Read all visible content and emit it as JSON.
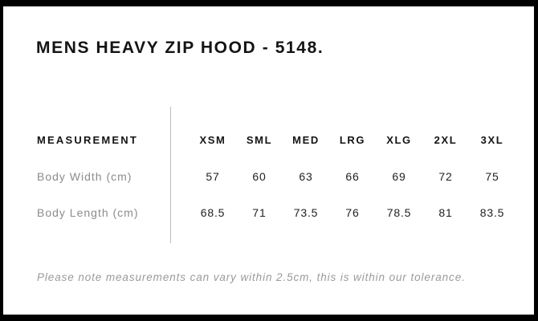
{
  "header": {
    "title": "MENS HEAVY ZIP HOOD - 5148."
  },
  "size_chart": {
    "measurement_label": "MEASUREMENT",
    "sizes": [
      "XSM",
      "SML",
      "MED",
      "LRG",
      "XLG",
      "2XL",
      "3XL"
    ],
    "rows": [
      {
        "label": "Body Width (cm)",
        "values": [
          "57",
          "60",
          "63",
          "66",
          "69",
          "72",
          "75"
        ]
      },
      {
        "label": "Body Length (cm)",
        "values": [
          "68.5",
          "71",
          "73.5",
          "76",
          "78.5",
          "81",
          "83.5"
        ]
      }
    ]
  },
  "footer": {
    "note": "Please note measurements can vary within 2.5cm, this is within our tolerance."
  },
  "colors": {
    "frame": "#000000",
    "background": "#ffffff",
    "heading_text": "#141414",
    "label_gray": "#8c8c8c",
    "value_dark": "#222222",
    "divider_gray": "#bcbcbc",
    "note_gray": "#9a9a9a"
  }
}
